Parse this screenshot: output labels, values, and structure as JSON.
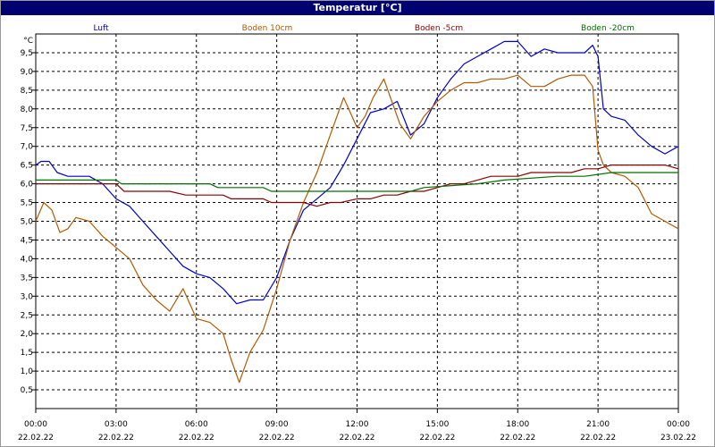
{
  "window": {
    "title": "Temperatur [°C]"
  },
  "chart_data": {
    "type": "line",
    "title": "Temperatur [°C]",
    "ylabel": "°C",
    "ylim": [
      0.0,
      10.0
    ],
    "yticks": [
      0.5,
      1.0,
      1.5,
      2.0,
      2.5,
      3.0,
      3.5,
      4.0,
      4.5,
      5.0,
      5.5,
      6.0,
      6.5,
      7.0,
      7.5,
      8.0,
      8.5,
      9.0,
      9.5
    ],
    "xlim": [
      0,
      24
    ],
    "xticks": [
      {
        "hour": 0,
        "time": "00:00",
        "date": "22.02.22"
      },
      {
        "hour": 3,
        "time": "03:00",
        "date": "22.02.22"
      },
      {
        "hour": 6,
        "time": "06:00",
        "date": "22.02.22"
      },
      {
        "hour": 9,
        "time": "09:00",
        "date": "22.02.22"
      },
      {
        "hour": 12,
        "time": "12:00",
        "date": "22.02.22"
      },
      {
        "hour": 15,
        "time": "15:00",
        "date": "22.02.22"
      },
      {
        "hour": 18,
        "time": "18:00",
        "date": "22.02.22"
      },
      {
        "hour": 21,
        "time": "21:00",
        "date": "22.02.22"
      },
      {
        "hour": 24,
        "time": "00:00",
        "date": "23.02.22"
      }
    ],
    "grid": true,
    "legend": "top",
    "series": [
      {
        "name": "Luft",
        "color": "#0000cc",
        "x": [
          0,
          0.2,
          0.5,
          0.8,
          1.2,
          1.5,
          2.0,
          2.5,
          3.0,
          3.5,
          4.0,
          4.5,
          5.0,
          5.5,
          6.0,
          6.5,
          7.0,
          7.5,
          8.0,
          8.5,
          9.0,
          9.5,
          10.0,
          10.5,
          11.0,
          11.5,
          12.0,
          12.5,
          13.0,
          13.5,
          14.0,
          14.5,
          15.0,
          15.5,
          16.0,
          16.5,
          17.0,
          17.5,
          18.0,
          18.5,
          19.0,
          19.5,
          20.0,
          20.5,
          20.8,
          21.0,
          21.2,
          21.5,
          22.0,
          22.5,
          23.0,
          23.5,
          24.0
        ],
        "values": [
          6.5,
          6.6,
          6.6,
          6.3,
          6.2,
          6.2,
          6.2,
          6.0,
          5.6,
          5.4,
          5.0,
          4.6,
          4.2,
          3.8,
          3.6,
          3.5,
          3.2,
          2.8,
          2.9,
          2.9,
          3.5,
          4.5,
          5.3,
          5.6,
          5.9,
          6.5,
          7.2,
          7.9,
          8.0,
          8.2,
          7.3,
          7.6,
          8.3,
          8.8,
          9.2,
          9.4,
          9.6,
          9.8,
          9.8,
          9.4,
          9.6,
          9.5,
          9.5,
          9.5,
          9.7,
          9.4,
          8.0,
          7.8,
          7.7,
          7.3,
          7.0,
          6.8,
          7.0
        ]
      },
      {
        "name": "Boden 10cm",
        "color": "#b35a00",
        "x": [
          0,
          0.3,
          0.6,
          0.9,
          1.2,
          1.5,
          2.0,
          2.5,
          3.0,
          3.5,
          4.0,
          4.5,
          5.0,
          5.5,
          6.0,
          6.5,
          7.0,
          7.3,
          7.6,
          8.0,
          8.5,
          9.0,
          9.5,
          10.0,
          10.5,
          11.0,
          11.5,
          12.0,
          12.3,
          12.6,
          13.0,
          13.3,
          13.6,
          14.0,
          14.5,
          15.0,
          15.5,
          16.0,
          16.5,
          17.0,
          17.5,
          18.0,
          18.5,
          19.0,
          19.5,
          20.0,
          20.5,
          20.8,
          21.0,
          21.2,
          21.5,
          22.0,
          22.5,
          23.0,
          23.5,
          24.0
        ],
        "values": [
          5.0,
          5.5,
          5.3,
          4.7,
          4.8,
          5.1,
          5.0,
          4.6,
          4.3,
          4.0,
          3.3,
          2.9,
          2.6,
          3.2,
          2.4,
          2.3,
          2.0,
          1.3,
          0.7,
          1.5,
          2.1,
          3.2,
          4.5,
          5.5,
          6.3,
          7.3,
          8.3,
          7.5,
          7.8,
          8.3,
          8.8,
          8.2,
          7.6,
          7.2,
          7.8,
          8.2,
          8.5,
          8.7,
          8.7,
          8.8,
          8.8,
          8.9,
          8.6,
          8.6,
          8.8,
          8.9,
          8.9,
          8.6,
          6.9,
          6.5,
          6.3,
          6.2,
          5.9,
          5.2,
          5.0,
          4.8
        ]
      },
      {
        "name": "Boden -5cm",
        "color": "#8b0000",
        "x": [
          0,
          1,
          2,
          3,
          3.3,
          5,
          5.6,
          7,
          7.3,
          8.5,
          8.8,
          10,
          10.5,
          11,
          11.4,
          12,
          12.5,
          13,
          13.5,
          14,
          14.5,
          15,
          15.5,
          16,
          16.5,
          17,
          17.5,
          18,
          18.5,
          19,
          19.5,
          20,
          20.5,
          21,
          21.5,
          22,
          23,
          23.5,
          24
        ],
        "values": [
          6.0,
          6.0,
          6.0,
          6.0,
          5.8,
          5.8,
          5.7,
          5.7,
          5.6,
          5.6,
          5.5,
          5.5,
          5.4,
          5.5,
          5.5,
          5.6,
          5.6,
          5.7,
          5.7,
          5.8,
          5.8,
          5.9,
          6.0,
          6.0,
          6.1,
          6.2,
          6.2,
          6.2,
          6.3,
          6.3,
          6.3,
          6.3,
          6.4,
          6.4,
          6.5,
          6.5,
          6.5,
          6.5,
          6.4
        ]
      },
      {
        "name": "Boden -20cm",
        "color": "#007000",
        "x": [
          0,
          1,
          3,
          3.2,
          6.5,
          6.8,
          8.5,
          8.8,
          14,
          14.5,
          16.5,
          17.5,
          19.5,
          20.5,
          21.5,
          22.5,
          24
        ],
        "values": [
          6.1,
          6.1,
          6.1,
          6.0,
          6.0,
          5.9,
          5.9,
          5.8,
          5.8,
          5.9,
          6.0,
          6.1,
          6.2,
          6.2,
          6.3,
          6.3,
          6.3
        ]
      }
    ]
  }
}
